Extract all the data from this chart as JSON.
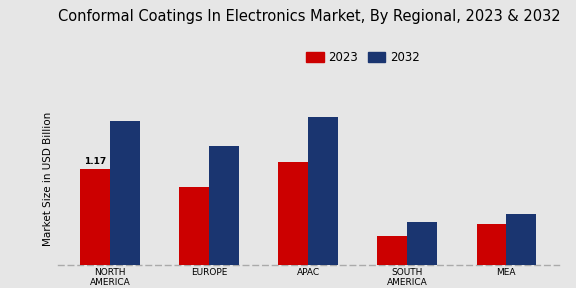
{
  "title": "Conformal Coatings In Electronics Market, By Regional, 2023 & 2032",
  "categories": [
    "NORTH\nAMERICA",
    "EUROPE",
    "APAC",
    "SOUTH\nAMERICA",
    "MEA"
  ],
  "values_2023": [
    1.17,
    0.95,
    1.25,
    0.35,
    0.5
  ],
  "values_2032": [
    1.75,
    1.45,
    1.8,
    0.52,
    0.62
  ],
  "color_2023": "#cc0000",
  "color_2032": "#1a3570",
  "ylabel": "Market Size in USD Billion",
  "annotation_text": "1.17",
  "legend_labels": [
    "2023",
    "2032"
  ],
  "background_color": "#e6e6e6",
  "bar_width": 0.3,
  "ylim": [
    0,
    2.1
  ],
  "title_fontsize": 10.5,
  "axis_label_fontsize": 7.5,
  "tick_fontsize": 6.5,
  "legend_fontsize": 8.5
}
